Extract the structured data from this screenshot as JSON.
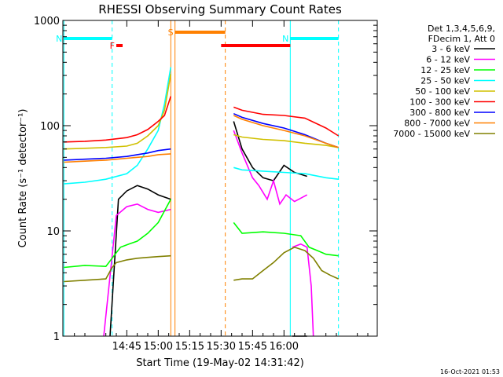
{
  "footer": {
    "timestamp": "16-Oct-2021 01:53"
  },
  "chart_data": {
    "type": "line",
    "title": "RHESSI Observing Summary Count Rates",
    "xlabel": "Start Time (19-May-02 14:31:42)",
    "ylabel": "Count Rate (s⁻¹ detector⁻¹)",
    "yscale": "log",
    "ylim": [
      1,
      1000
    ],
    "xlim_minutes": [
      14.5,
      164.5
    ],
    "x_ticks": [
      {
        "label": "14:45",
        "minutes": 45
      },
      {
        "label": "15:00",
        "minutes": 60
      },
      {
        "label": "15:15",
        "minutes": 75
      },
      {
        "label": "15:30",
        "minutes": 90
      },
      {
        "label": "15:45",
        "minutes": 105
      },
      {
        "label": "16:00",
        "minutes": 120
      }
    ],
    "y_ticks": [
      {
        "label": "1",
        "value": 1
      },
      {
        "label": "10",
        "value": 10
      },
      {
        "label": "100",
        "value": 100
      },
      {
        "label": "1000",
        "value": 1000
      }
    ],
    "legend": {
      "position": "top-right",
      "header": [
        "Det 1,3,4,5,6,9,",
        "FDecim 1, Att 0"
      ]
    },
    "bars": [
      {
        "label": "N",
        "start": 15,
        "end": 38,
        "color": "#00ffff"
      },
      {
        "label": "N",
        "start": 123,
        "end": 146,
        "color": "#00ffff"
      },
      {
        "label": "F",
        "start": 40,
        "end": 43,
        "color": "#ff0000"
      },
      {
        "label": "",
        "start": 90,
        "end": 123,
        "color": "#ff0000"
      },
      {
        "label": "S",
        "start": 68,
        "end": 92,
        "color": "#ff8000"
      }
    ],
    "vlines": [
      {
        "x": 15,
        "color": "#00ffff",
        "style": "solid"
      },
      {
        "x": 38,
        "color": "#00ffff",
        "style": "dashed"
      },
      {
        "x": 123,
        "color": "#00ffff",
        "style": "solid"
      },
      {
        "x": 146,
        "color": "#00ffff",
        "style": "dashed"
      },
      {
        "x": 66,
        "color": "#ff8000",
        "style": "solid"
      },
      {
        "x": 68,
        "color": "#ff8000",
        "style": "solid"
      },
      {
        "x": 92,
        "color": "#ff8000",
        "style": "dashed"
      }
    ],
    "series": [
      {
        "name": "3 - 6 keV",
        "color": "#000000",
        "segments": [
          {
            "x": [
              37,
              41,
              45,
              50,
              55,
              60,
              66
            ],
            "y": [
              1,
              20,
              24,
              27,
              25,
              22,
              20
            ]
          },
          {
            "x": [
              96,
              100,
              105,
              110,
              115,
              120,
              125,
              131
            ],
            "y": [
              110,
              60,
              40,
              32,
              30,
              42,
              36,
              33
            ]
          },
          {
            "x": [
              124,
              128,
              131
            ],
            "y": [
              1,
              1,
              1
            ]
          }
        ]
      },
      {
        "name": "6 - 12 keV",
        "color": "#ff00ff",
        "segments": [
          {
            "x": [
              34,
              38,
              40,
              45,
              50,
              55,
              60,
              66
            ],
            "y": [
              1,
              5.8,
              14,
              17,
              18,
              16,
              15,
              16
            ]
          },
          {
            "x": [
              96,
              100,
              105,
              108,
              112,
              115,
              118,
              121,
              125,
              131
            ],
            "y": [
              90,
              55,
              32,
              27,
              20,
              30,
              18,
              22,
              19,
              22
            ]
          },
          {
            "x": [
              124,
              128,
              131,
              133,
              134
            ],
            "y": [
              7,
              7.5,
              7,
              3,
              1
            ]
          }
        ]
      },
      {
        "name": "12 - 25 keV",
        "color": "#00ff00",
        "segments": [
          {
            "x": [
              15,
              25,
              35,
              38,
              42,
              46,
              50,
              55,
              60,
              66
            ],
            "y": [
              4.5,
              4.7,
              4.6,
              5.5,
              7,
              7.5,
              8,
              9.5,
              12,
              20
            ]
          },
          {
            "x": [
              96,
              100,
              110,
              120,
              128,
              132,
              136,
              140,
              146
            ],
            "y": [
              12,
              9.5,
              9.8,
              9.5,
              9,
              7,
              6.5,
              6,
              5.8
            ]
          }
        ]
      },
      {
        "name": "25 - 50 keV",
        "color": "#00ffff",
        "segments": [
          {
            "x": [
              15,
              25,
              35,
              45,
              50,
              55,
              60,
              63,
              66
            ],
            "y": [
              28,
              29,
              31,
              35,
              42,
              60,
              90,
              160,
              360
            ]
          },
          {
            "x": [
              96,
              100,
              110,
              120,
              130,
              140,
              146
            ],
            "y": [
              40,
              38,
              37,
              36,
              35,
              32,
              31
            ]
          }
        ]
      },
      {
        "name": "50 - 100 keV",
        "color": "#d0c000",
        "segments": [
          {
            "x": [
              15,
              25,
              35,
              45,
              50,
              55,
              60,
              63,
              66
            ],
            "y": [
              60,
              61,
              62,
              64,
              68,
              80,
              100,
              140,
              310
            ]
          },
          {
            "x": [
              96,
              100,
              110,
              120,
              130,
              140,
              146
            ],
            "y": [
              82,
              78,
              74,
              72,
              68,
              65,
              62
            ]
          }
        ]
      },
      {
        "name": "100 - 300 keV",
        "color": "#ff0000",
        "segments": [
          {
            "x": [
              15,
              25,
              35,
              45,
              50,
              55,
              60,
              63,
              66
            ],
            "y": [
              70,
              71,
              73,
              77,
              82,
              92,
              110,
              125,
              190
            ]
          },
          {
            "x": [
              96,
              100,
              110,
              120,
              130,
              140,
              146
            ],
            "y": [
              150,
              140,
              128,
              125,
              118,
              95,
              80
            ]
          }
        ]
      },
      {
        "name": "300 - 800 keV",
        "color": "#0000ff",
        "segments": [
          {
            "x": [
              15,
              25,
              35,
              45,
              50,
              55,
              60,
              66
            ],
            "y": [
              47,
              48,
              49,
              51,
              53,
              55,
              58,
              60
            ]
          },
          {
            "x": [
              96,
              100,
              110,
              120,
              130,
              140,
              146
            ],
            "y": [
              130,
              120,
              105,
              95,
              82,
              68,
              62
            ]
          }
        ]
      },
      {
        "name": "800 - 7000 keV",
        "color": "#ff8000",
        "segments": [
          {
            "x": [
              15,
              25,
              35,
              45,
              50,
              55,
              60,
              66
            ],
            "y": [
              45,
              46,
              47,
              49,
              50,
              51,
              53,
              54
            ]
          },
          {
            "x": [
              96,
              100,
              110,
              120,
              130,
              140,
              146
            ],
            "y": [
              125,
              115,
              100,
              90,
              80,
              68,
              62
            ]
          }
        ]
      },
      {
        "name": "7000 - 15000 keV",
        "color": "#808000",
        "segments": [
          {
            "x": [
              15,
              25,
              35,
              38,
              40,
              45,
              50,
              55,
              60,
              66
            ],
            "y": [
              3.3,
              3.4,
              3.5,
              4.5,
              5,
              5.3,
              5.5,
              5.6,
              5.7,
              5.8
            ]
          },
          {
            "x": [
              96,
              100,
              105,
              110,
              115,
              120,
              125,
              130,
              134,
              138,
              142,
              146
            ],
            "y": [
              3.4,
              3.5,
              3.5,
              4.2,
              5,
              6.2,
              7,
              6.5,
              5.5,
              4.2,
              3.8,
              3.5
            ]
          }
        ]
      }
    ]
  }
}
